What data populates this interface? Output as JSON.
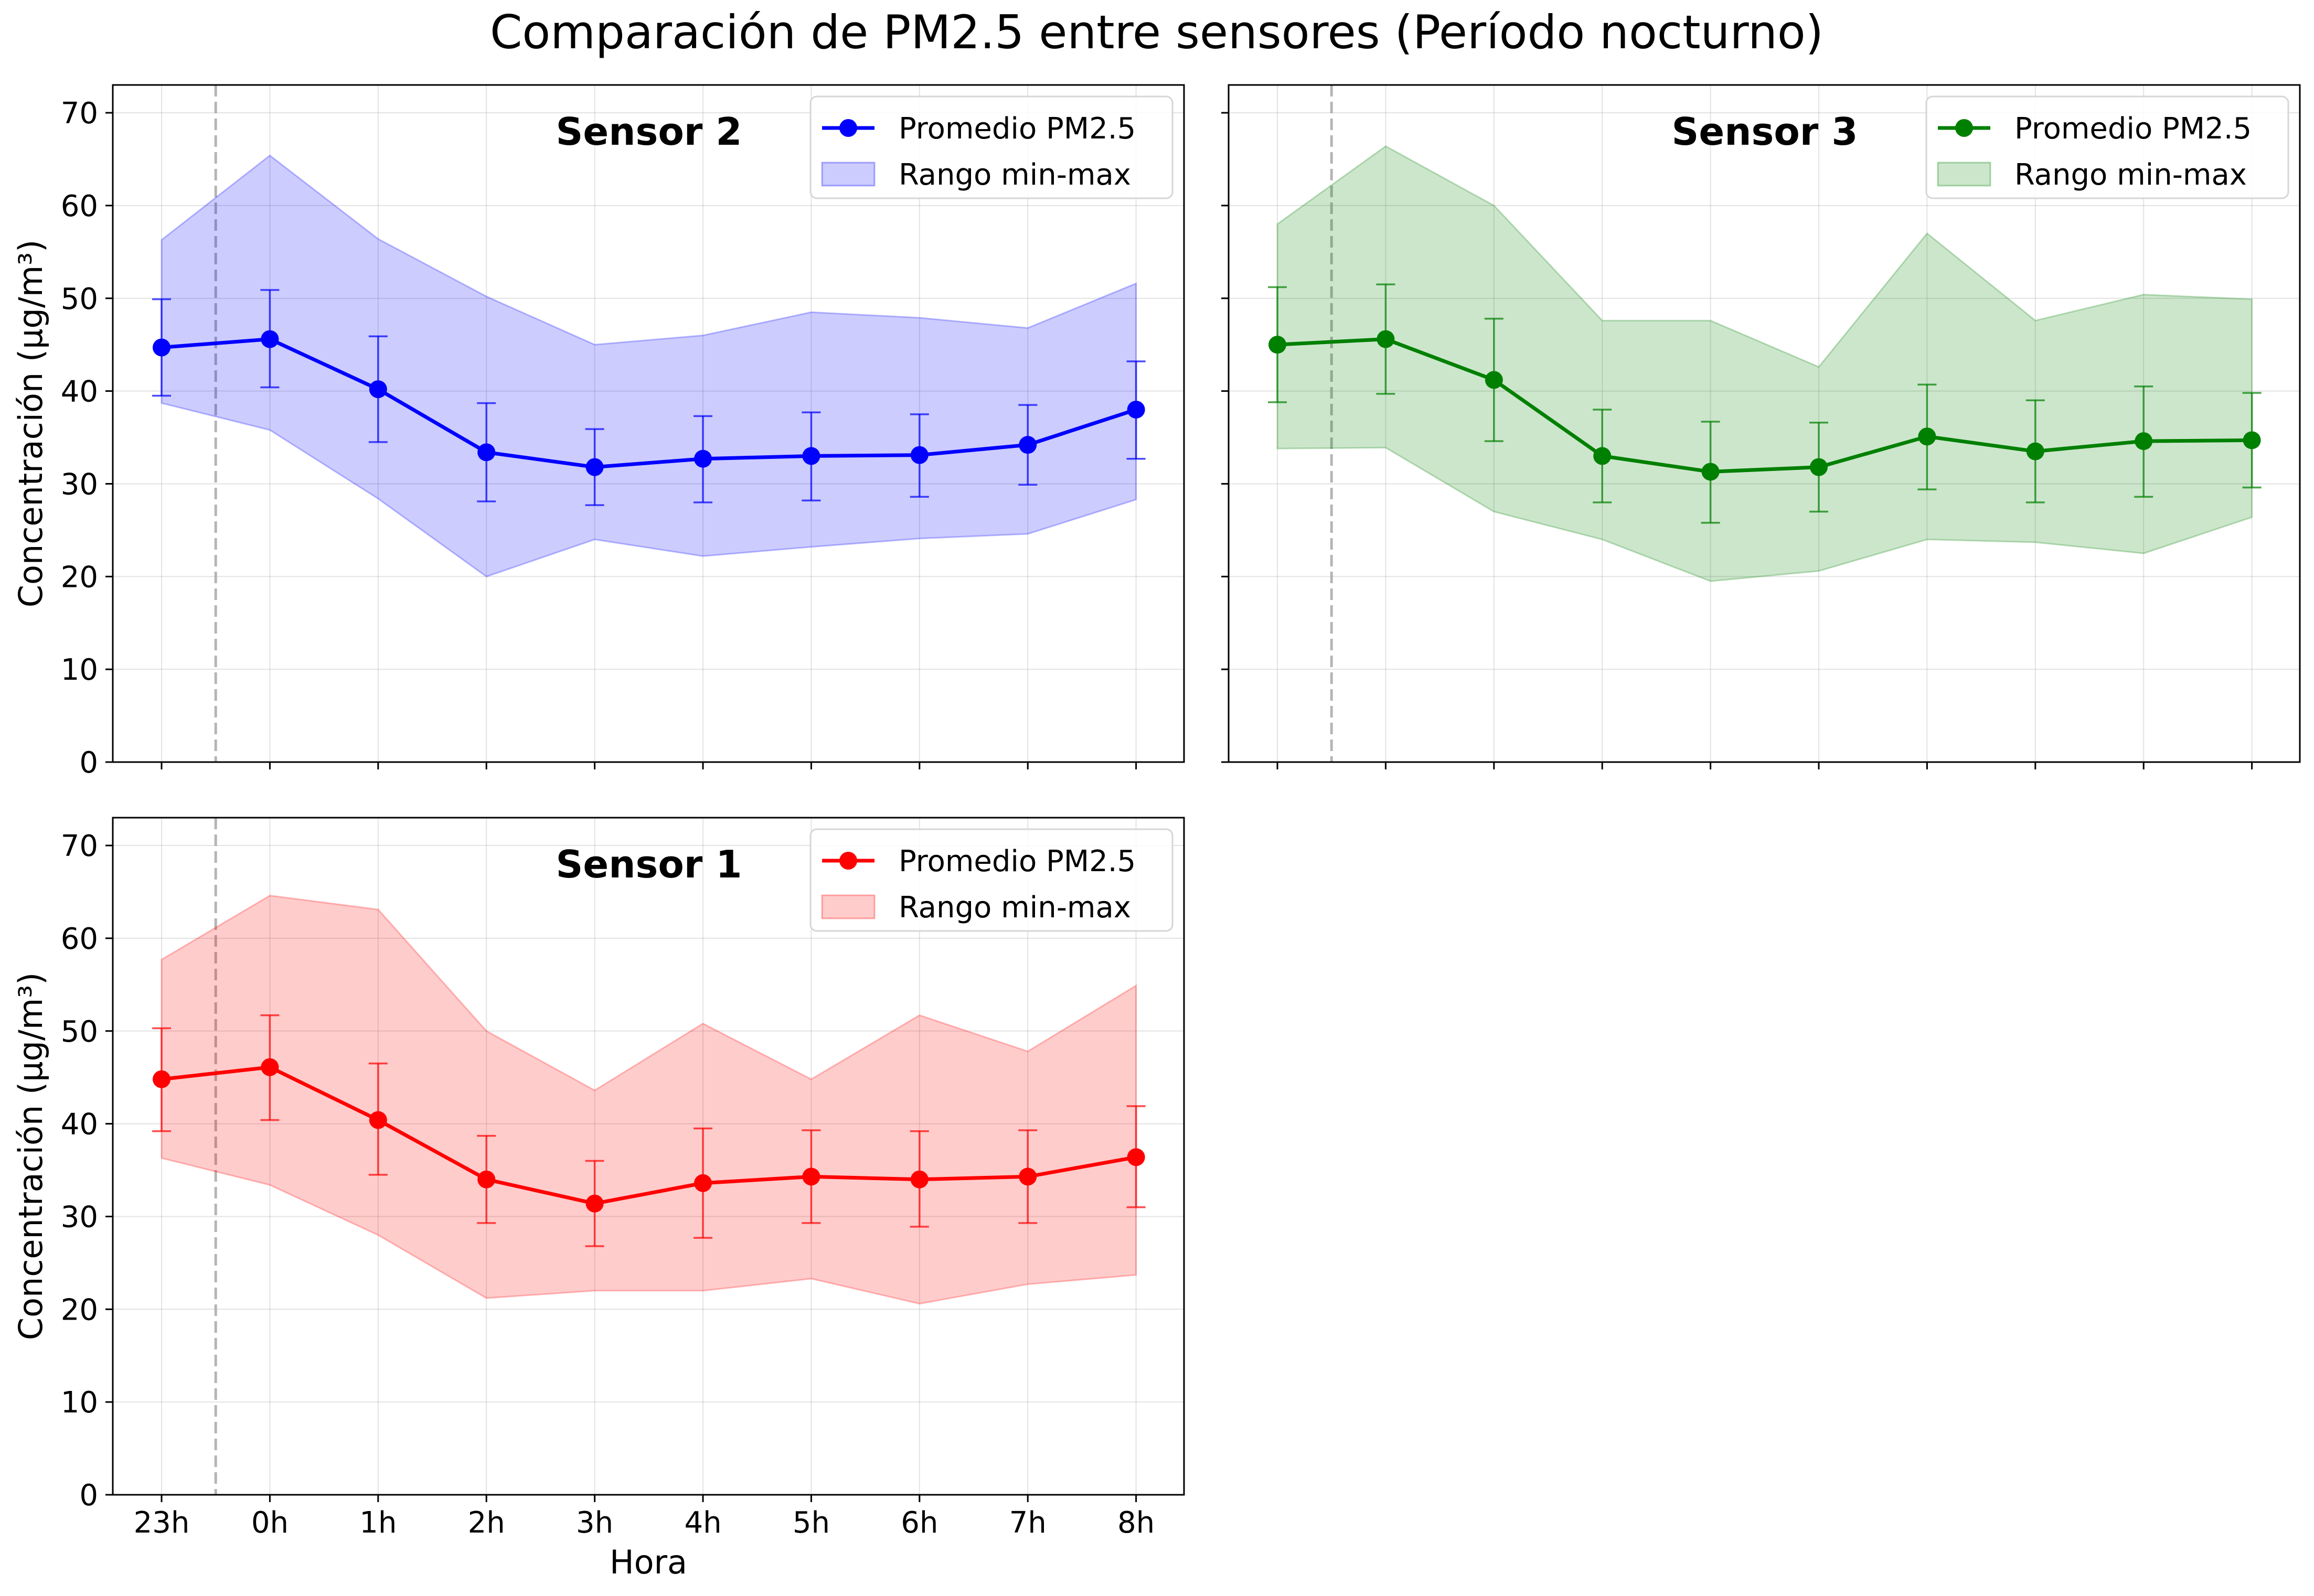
{
  "figure": {
    "title": "Comparación de PM2.5 entre sensores (Período nocturno)"
  },
  "chart_data": [
    {
      "type": "line",
      "title": "Sensor 2",
      "xlabel": "",
      "ylabel": "Concentración (μg/m³)",
      "categories": [
        "23h",
        "0h",
        "1h",
        "2h",
        "3h",
        "4h",
        "5h",
        "6h",
        "7h",
        "8h"
      ],
      "ylim": [
        0,
        73
      ],
      "yticks": [
        0,
        10,
        20,
        30,
        40,
        50,
        60,
        70
      ],
      "grid": true,
      "legend_position": "top-right",
      "reference_line_x": 23.5,
      "color": "#0000ff",
      "series": [
        {
          "name": "Promedio PM2.5",
          "kind": "line",
          "values": [
            44.7,
            45.6,
            40.2,
            33.4,
            31.8,
            32.7,
            33.0,
            33.1,
            34.2,
            38.0
          ],
          "error_low": [
            39.5,
            40.4,
            34.5,
            28.1,
            27.7,
            28.0,
            28.2,
            28.6,
            29.9,
            32.7
          ],
          "error_high": [
            49.9,
            50.9,
            45.9,
            38.7,
            35.9,
            37.3,
            37.7,
            37.5,
            38.5,
            43.2
          ]
        },
        {
          "name": "Rango min-max",
          "kind": "band",
          "min": [
            38.7,
            35.8,
            28.4,
            20.0,
            24.0,
            22.2,
            23.2,
            24.1,
            24.6,
            28.3
          ],
          "max": [
            56.3,
            65.4,
            56.4,
            50.2,
            45.0,
            46.0,
            48.5,
            47.9,
            46.8,
            51.6
          ]
        }
      ]
    },
    {
      "type": "line",
      "title": "Sensor 3",
      "xlabel": "",
      "ylabel": "",
      "categories": [
        "23h",
        "0h",
        "1h",
        "2h",
        "3h",
        "4h",
        "5h",
        "6h",
        "7h",
        "8h"
      ],
      "ylim": [
        0,
        73
      ],
      "yticks": [
        0,
        10,
        20,
        30,
        40,
        50,
        60,
        70
      ],
      "grid": true,
      "legend_position": "top-right",
      "reference_line_x": 23.5,
      "color": "#008000",
      "series": [
        {
          "name": "Promedio PM2.5",
          "kind": "line",
          "values": [
            45.0,
            45.6,
            41.2,
            33.0,
            31.3,
            31.8,
            35.1,
            33.5,
            34.6,
            34.7
          ],
          "error_low": [
            38.8,
            39.7,
            34.6,
            28.0,
            25.8,
            27.0,
            29.4,
            28.0,
            28.6,
            29.6
          ],
          "error_high": [
            51.2,
            51.5,
            47.8,
            38.0,
            36.7,
            36.6,
            40.7,
            39.0,
            40.5,
            39.8
          ]
        },
        {
          "name": "Rango min-max",
          "kind": "band",
          "min": [
            33.8,
            33.9,
            27.0,
            24.0,
            19.5,
            20.6,
            24.0,
            23.7,
            22.5,
            26.4
          ],
          "max": [
            58.0,
            66.4,
            60.0,
            47.6,
            47.6,
            42.6,
            57.0,
            47.6,
            50.4,
            49.9
          ]
        }
      ]
    },
    {
      "type": "line",
      "title": "Sensor 1",
      "xlabel": "Hora",
      "ylabel": "Concentración (μg/m³)",
      "categories": [
        "23h",
        "0h",
        "1h",
        "2h",
        "3h",
        "4h",
        "5h",
        "6h",
        "7h",
        "8h"
      ],
      "ylim": [
        0,
        73
      ],
      "yticks": [
        0,
        10,
        20,
        30,
        40,
        50,
        60,
        70
      ],
      "grid": true,
      "legend_position": "top-right",
      "reference_line_x": 23.5,
      "color": "#ff0000",
      "series": [
        {
          "name": "Promedio PM2.5",
          "kind": "line",
          "values": [
            44.8,
            46.1,
            40.4,
            34.0,
            31.4,
            33.6,
            34.3,
            34.0,
            34.3,
            36.4
          ],
          "error_low": [
            39.2,
            40.4,
            34.5,
            29.3,
            26.8,
            27.7,
            29.3,
            28.9,
            29.3,
            31.0
          ],
          "error_high": [
            50.3,
            51.7,
            46.5,
            38.7,
            36.0,
            39.5,
            39.3,
            39.2,
            39.3,
            41.9
          ]
        },
        {
          "name": "Rango min-max",
          "kind": "band",
          "min": [
            36.3,
            33.4,
            28.0,
            21.2,
            22.0,
            22.0,
            23.3,
            20.6,
            22.7,
            23.7
          ],
          "max": [
            57.7,
            64.6,
            63.1,
            50.0,
            43.6,
            50.8,
            44.8,
            51.7,
            47.8,
            54.9
          ]
        }
      ]
    }
  ]
}
